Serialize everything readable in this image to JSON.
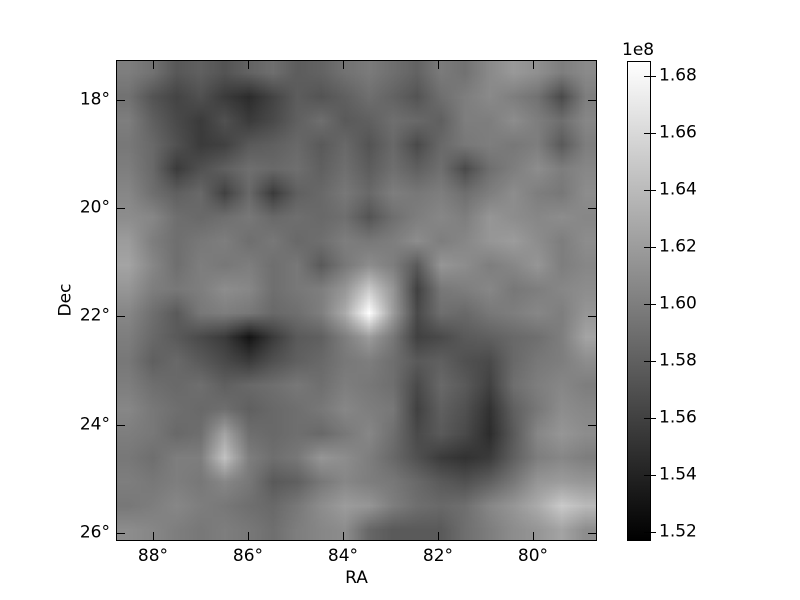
{
  "chart_data": {
    "type": "heatmap",
    "title": "",
    "xlabel": "RA",
    "ylabel": "Dec",
    "x_tick_labels": [
      "88°",
      "86°",
      "84°",
      "82°",
      "80°"
    ],
    "x_tick_values": [
      88,
      86,
      84,
      82,
      80
    ],
    "y_tick_labels": [
      "18°",
      "20°",
      "22°",
      "24°",
      "26°"
    ],
    "y_tick_values": [
      18,
      20,
      22,
      24,
      26
    ],
    "xlim": [
      88.78,
      78.66
    ],
    "ylim": [
      17.26,
      26.15
    ],
    "grid": false,
    "colormap": "gray",
    "color_min": "#000000",
    "color_max": "#ffffff",
    "units_scale": "1e8",
    "colorbar": {
      "offset_label": "1e8",
      "position": "right",
      "tick_labels": [
        "1.68",
        "1.66",
        "1.64",
        "1.62",
        "1.60",
        "1.58",
        "1.56",
        "1.54",
        "1.52"
      ],
      "tick_values": [
        1.68,
        1.66,
        1.64,
        1.62,
        1.6,
        1.58,
        1.56,
        1.54,
        1.52
      ],
      "vmin": 1.5168,
      "vmax": 1.6853
    },
    "grid_rows": 20,
    "grid_cols": 20,
    "values_1e8": [
      [
        1.6,
        1.592,
        1.575,
        1.58,
        1.572,
        1.582,
        1.59,
        1.578,
        1.582,
        1.592,
        1.598,
        1.59,
        1.582,
        1.598,
        1.592,
        1.608,
        1.618,
        1.612,
        1.6,
        1.608
      ],
      [
        1.592,
        1.572,
        1.562,
        1.57,
        1.556,
        1.546,
        1.562,
        1.578,
        1.572,
        1.58,
        1.59,
        1.582,
        1.572,
        1.59,
        1.6,
        1.608,
        1.6,
        1.592,
        1.566,
        1.6
      ],
      [
        1.6,
        1.58,
        1.566,
        1.556,
        1.57,
        1.556,
        1.566,
        1.58,
        1.59,
        1.576,
        1.58,
        1.59,
        1.586,
        1.58,
        1.6,
        1.6,
        1.61,
        1.6,
        1.59,
        1.606
      ],
      [
        1.596,
        1.586,
        1.57,
        1.556,
        1.56,
        1.576,
        1.58,
        1.586,
        1.576,
        1.586,
        1.572,
        1.586,
        1.566,
        1.586,
        1.596,
        1.6,
        1.596,
        1.6,
        1.576,
        1.6
      ],
      [
        1.6,
        1.586,
        1.556,
        1.57,
        1.58,
        1.59,
        1.586,
        1.59,
        1.58,
        1.59,
        1.578,
        1.59,
        1.58,
        1.59,
        1.566,
        1.59,
        1.6,
        1.61,
        1.6,
        1.606
      ],
      [
        1.606,
        1.59,
        1.58,
        1.586,
        1.56,
        1.586,
        1.556,
        1.58,
        1.586,
        1.596,
        1.586,
        1.6,
        1.596,
        1.6,
        1.59,
        1.6,
        1.61,
        1.6,
        1.596,
        1.61
      ],
      [
        1.61,
        1.606,
        1.59,
        1.586,
        1.59,
        1.596,
        1.586,
        1.59,
        1.586,
        1.59,
        1.572,
        1.59,
        1.6,
        1.606,
        1.6,
        1.616,
        1.61,
        1.606,
        1.61,
        1.606
      ],
      [
        1.62,
        1.6,
        1.59,
        1.596,
        1.6,
        1.59,
        1.596,
        1.586,
        1.59,
        1.6,
        1.596,
        1.6,
        1.61,
        1.6,
        1.606,
        1.616,
        1.62,
        1.61,
        1.6,
        1.61
      ],
      [
        1.625,
        1.606,
        1.59,
        1.6,
        1.596,
        1.6,
        1.59,
        1.596,
        1.576,
        1.596,
        1.61,
        1.6,
        1.576,
        1.616,
        1.61,
        1.6,
        1.606,
        1.616,
        1.6,
        1.606
      ],
      [
        1.616,
        1.6,
        1.596,
        1.6,
        1.61,
        1.606,
        1.59,
        1.596,
        1.6,
        1.616,
        1.65,
        1.616,
        1.56,
        1.596,
        1.6,
        1.606,
        1.596,
        1.6,
        1.606,
        1.61
      ],
      [
        1.606,
        1.59,
        1.576,
        1.596,
        1.6,
        1.596,
        1.586,
        1.59,
        1.6,
        1.63,
        1.685,
        1.62,
        1.566,
        1.59,
        1.586,
        1.596,
        1.6,
        1.606,
        1.6,
        1.616
      ],
      [
        1.6,
        1.586,
        1.576,
        1.566,
        1.556,
        1.53,
        1.556,
        1.576,
        1.58,
        1.6,
        1.62,
        1.596,
        1.56,
        1.566,
        1.576,
        1.58,
        1.586,
        1.59,
        1.6,
        1.625
      ],
      [
        1.596,
        1.58,
        1.586,
        1.576,
        1.566,
        1.556,
        1.57,
        1.58,
        1.586,
        1.596,
        1.6,
        1.59,
        1.576,
        1.58,
        1.57,
        1.566,
        1.586,
        1.596,
        1.6,
        1.61
      ],
      [
        1.6,
        1.59,
        1.586,
        1.59,
        1.58,
        1.586,
        1.59,
        1.596,
        1.59,
        1.6,
        1.596,
        1.59,
        1.566,
        1.586,
        1.576,
        1.56,
        1.59,
        1.6,
        1.606,
        1.6
      ],
      [
        1.606,
        1.596,
        1.59,
        1.586,
        1.59,
        1.58,
        1.586,
        1.59,
        1.596,
        1.606,
        1.6,
        1.596,
        1.56,
        1.58,
        1.57,
        1.55,
        1.58,
        1.596,
        1.61,
        1.606
      ],
      [
        1.6,
        1.596,
        1.586,
        1.59,
        1.625,
        1.59,
        1.586,
        1.59,
        1.586,
        1.596,
        1.606,
        1.59,
        1.566,
        1.576,
        1.566,
        1.546,
        1.576,
        1.606,
        1.616,
        1.61
      ],
      [
        1.596,
        1.59,
        1.6,
        1.6,
        1.645,
        1.6,
        1.59,
        1.596,
        1.616,
        1.61,
        1.6,
        1.586,
        1.57,
        1.556,
        1.55,
        1.556,
        1.58,
        1.6,
        1.606,
        1.6
      ],
      [
        1.6,
        1.596,
        1.6,
        1.596,
        1.606,
        1.596,
        1.576,
        1.58,
        1.596,
        1.606,
        1.6,
        1.596,
        1.586,
        1.576,
        1.57,
        1.58,
        1.596,
        1.616,
        1.62,
        1.616
      ],
      [
        1.596,
        1.6,
        1.606,
        1.6,
        1.596,
        1.59,
        1.586,
        1.596,
        1.61,
        1.62,
        1.616,
        1.6,
        1.59,
        1.586,
        1.59,
        1.606,
        1.616,
        1.63,
        1.65,
        1.64
      ],
      [
        1.61,
        1.606,
        1.6,
        1.596,
        1.6,
        1.596,
        1.59,
        1.6,
        1.606,
        1.61,
        1.585,
        1.576,
        1.576,
        1.576,
        1.59,
        1.6,
        1.61,
        1.616,
        1.625,
        1.61
      ]
    ]
  }
}
